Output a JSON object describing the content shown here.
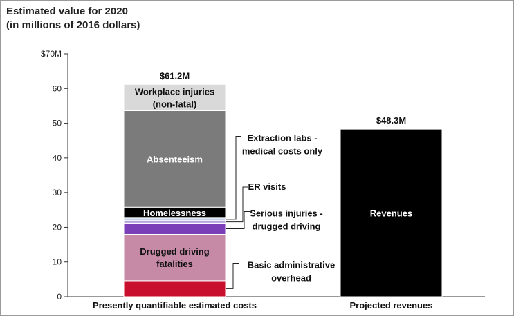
{
  "chart_data": {
    "type": "bar",
    "stacked": true,
    "title": "Estimated value for 2020",
    "subtitle": "(in millions of 2016 dollars)",
    "categories": [
      "Presently quantifiable estimated costs",
      "Projected revenues"
    ],
    "ylim": [
      0,
      70
    ],
    "yticks": [
      0,
      10,
      20,
      30,
      40,
      50,
      60,
      70
    ],
    "ytick_labels": [
      "0",
      "10",
      "20",
      "30",
      "40",
      "50",
      "60",
      "$70M"
    ],
    "grid": false,
    "series": [
      {
        "name": "Basic administrative overhead",
        "category": 0,
        "value": 4.6,
        "color": "#c8102e"
      },
      {
        "name": "Drugged driving fatalities",
        "category": 0,
        "value": 13.4,
        "color": "#c78aa6"
      },
      {
        "name": "Serious injuries - drugged driving",
        "category": 0,
        "value": 3.2,
        "color": "#7a3fb8"
      },
      {
        "name": "ER visits",
        "category": 0,
        "value": 0.7,
        "color": "#b7a7df"
      },
      {
        "name": "Extraction labs - medical costs only",
        "category": 0,
        "value": 0.8,
        "color": "#c9d4ec"
      },
      {
        "name": "Homelessness",
        "category": 0,
        "value": 3.1,
        "color": "#000000"
      },
      {
        "name": "Absenteeism",
        "category": 0,
        "value": 27.8,
        "color": "#7b7b7b"
      },
      {
        "name": "Workplace injuries (non-fatal)",
        "category": 0,
        "value": 7.6,
        "color": "#d9d9d9"
      },
      {
        "name": "Revenues",
        "category": 1,
        "value": 48.3,
        "color": "#000000"
      }
    ],
    "totals": [
      {
        "category": 0,
        "value": 61.2,
        "label": "$61.2M"
      },
      {
        "category": 1,
        "value": 48.3,
        "label": "$48.3M"
      }
    ],
    "inner_labels": [
      {
        "series": "Workplace injuries (non-fatal)",
        "lines": [
          "Workplace injuries",
          "(non-fatal)"
        ],
        "color": "#111111",
        "bold": true
      },
      {
        "series": "Absenteeism",
        "lines": [
          "Absenteeism"
        ],
        "color": "#ffffff",
        "bold": true
      },
      {
        "series": "Homelessness",
        "lines": [
          "Homelessness"
        ],
        "color": "#ffffff",
        "bold": true
      },
      {
        "series": "Drugged driving fatalities",
        "lines": [
          "Drugged driving",
          "fatalities"
        ],
        "color": "#111111",
        "bold": true
      },
      {
        "series": "Revenues",
        "lines": [
          "Revenues"
        ],
        "color": "#ffffff",
        "bold": true
      }
    ],
    "callouts": [
      {
        "series": "Extraction labs - medical costs only",
        "lines": [
          "Extraction labs -",
          "medical costs only"
        ]
      },
      {
        "series": "ER visits",
        "lines": [
          "ER visits"
        ]
      },
      {
        "series": "Serious injuries - drugged driving",
        "lines": [
          "Serious injuries -",
          "drugged driving"
        ]
      },
      {
        "series": "Basic administrative overhead",
        "lines": [
          "Basic administrative",
          "overhead"
        ]
      }
    ]
  }
}
